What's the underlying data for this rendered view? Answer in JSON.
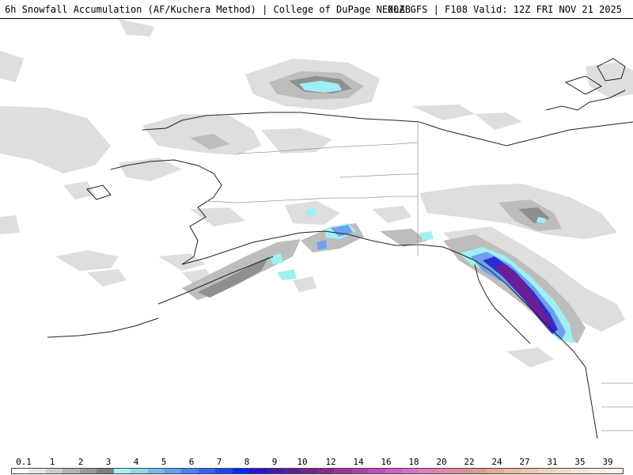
{
  "header": {
    "title_left": "6h Snowfall Accumulation (AF/Kuchera Method) | College of DuPage NEXLAB",
    "title_right": "00Z GFS | F108 Valid: 12Z FRI NOV 21 2025"
  },
  "legend": {
    "ticks": [
      "0.1",
      "1",
      "2",
      "3",
      "4",
      "5",
      "6",
      "7",
      "8",
      "9",
      "10",
      "12",
      "14",
      "16",
      "18",
      "20",
      "22",
      "24",
      "27",
      "31",
      "35",
      "39"
    ],
    "colors": [
      "#ffffff",
      "#e6e6e6",
      "#cccccc",
      "#b2b2b2",
      "#999999",
      "#7f7f7f",
      "#a6f0f0",
      "#8fd6ee",
      "#78b9ec",
      "#629df0",
      "#4c80f4",
      "#3663f6",
      "#1f46f8",
      "#0a28fa",
      "#2a14c8",
      "#4a1aa8",
      "#5f1f9a",
      "#74258e",
      "#8a2a95",
      "#9e34a3",
      "#b03fb2",
      "#c24bc0",
      "#d35ccc",
      "#dd6ec6",
      "#e47cba",
      "#e287a8",
      "#df8e96",
      "#e09a8c",
      "#e4aa92",
      "#e9b9a0",
      "#eec6ad",
      "#f2d2bb",
      "#f5dcc8",
      "#f8e4d5",
      "#fbebdf",
      "#fdf1e8"
    ]
  },
  "map": {
    "ocean_color": "#ffffff",
    "land_color": "#ffffff",
    "coast_color": "#222222",
    "border_color": "#aaaaaa",
    "snow_colors": {
      "light": "#dcdcdc",
      "medium": "#b8b8b8",
      "heavy": "#8c8c8c",
      "cyan": "#9ff0f2",
      "blue": "#6fa0f0",
      "deep": "#2c2cd0",
      "purple": "#6a1f9a"
    }
  }
}
